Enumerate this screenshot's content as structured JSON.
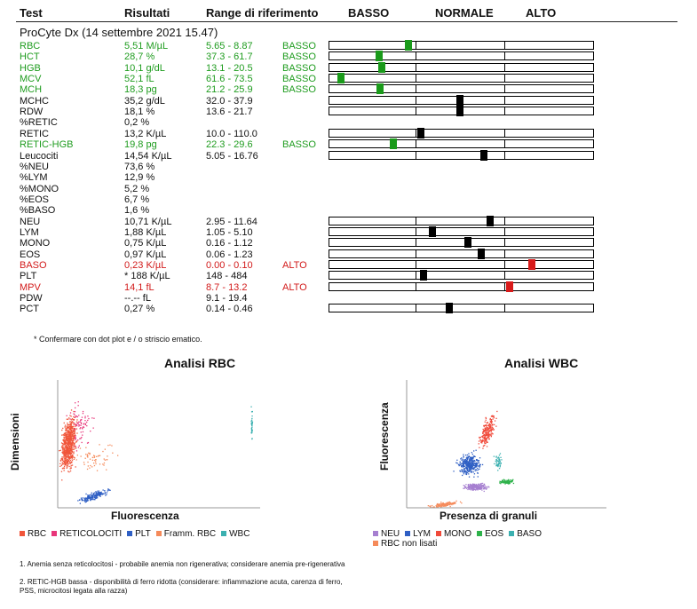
{
  "header": {
    "test": "Test",
    "results": "Risultati",
    "range": "Range di riferimento",
    "low": "BASSO",
    "normal": "NORMALE",
    "high": "ALTO"
  },
  "device": "ProCyte Dx (14 settembre 2021 15.47)",
  "rows": [
    {
      "test": "RBC",
      "result": "5,51 M/µL",
      "range": "5.65 - 8.87",
      "flag": "BASSO",
      "status": "low",
      "level": 0.93,
      "bar": 1
    },
    {
      "test": "HCT",
      "result": "28,7 %",
      "range": "37.3 - 61.7",
      "flag": "BASSO",
      "status": "low",
      "level": 0.57,
      "bar": 1
    },
    {
      "test": "HGB",
      "result": "10,1 g/dL",
      "range": "13.1 - 20.5",
      "flag": "BASSO",
      "status": "low",
      "level": 0.6,
      "bar": 1
    },
    {
      "test": "MCV",
      "result": "52,1 fL",
      "range": "61.6 - 73.5",
      "flag": "BASSO",
      "status": "low",
      "level": 0.1,
      "bar": 1
    },
    {
      "test": "MCH",
      "result": "18,3 pg",
      "range": "21.2 - 25.9",
      "flag": "BASSO",
      "status": "low",
      "level": 0.58,
      "bar": 1
    },
    {
      "test": "MCHC",
      "result": "35,2 g/dL",
      "range": "32.0 - 37.9",
      "flag": "",
      "status": "norm",
      "level": 0.5,
      "bar": 1
    },
    {
      "test": "RDW",
      "result": "18,1 %",
      "range": "13.6 - 21.7",
      "flag": "",
      "status": "norm",
      "level": 0.5,
      "bar": 1
    },
    {
      "test": "%RETIC",
      "result": "0,2 %",
      "range": "",
      "flag": "",
      "status": "norm",
      "level": null,
      "bar": 0
    },
    {
      "test": "RETIC",
      "result": "13,2 K/µL",
      "range": "10.0 - 110.0",
      "flag": "",
      "status": "norm",
      "level": 0.02,
      "bar": 1
    },
    {
      "test": "RETIC-HGB",
      "result": "19,8 pg",
      "range": "22.3 - 29.6",
      "flag": "BASSO",
      "status": "low",
      "level": 0.75,
      "bar": 1
    },
    {
      "test": "Leucociti",
      "result": "14,54 K/µL",
      "range": "5.05 - 16.76",
      "flag": "",
      "status": "norm",
      "level": 0.8,
      "bar": 1
    },
    {
      "test": "%NEU",
      "result": "73,6 %",
      "range": "",
      "flag": "",
      "status": "norm",
      "level": null,
      "bar": 0
    },
    {
      "test": "%LYM",
      "result": "12,9 %",
      "range": "",
      "flag": "",
      "status": "norm",
      "level": null,
      "bar": 0
    },
    {
      "test": "%MONO",
      "result": "5,2 %",
      "range": "",
      "flag": "",
      "status": "norm",
      "level": null,
      "bar": 0
    },
    {
      "test": "%EOS",
      "result": "6,7 %",
      "range": "",
      "flag": "",
      "status": "norm",
      "level": null,
      "bar": 0
    },
    {
      "test": "%BASO",
      "result": "1,6 %",
      "range": "",
      "flag": "",
      "status": "norm",
      "level": null,
      "bar": 0
    },
    {
      "test": "NEU",
      "result": "10,71 K/µL",
      "range": "2.95 - 11.64",
      "flag": "",
      "status": "norm",
      "level": 0.88,
      "bar": 1
    },
    {
      "test": "LYM",
      "result": "1,88 K/µL",
      "range": "1.05 - 5.10",
      "flag": "",
      "status": "norm",
      "level": 0.16,
      "bar": 1
    },
    {
      "test": "MONO",
      "result": "0,75 K/µL",
      "range": "0.16 - 1.12",
      "flag": "",
      "status": "norm",
      "level": 0.6,
      "bar": 1
    },
    {
      "test": "EOS",
      "result": "0,97 K/µL",
      "range": "0.06 - 1.23",
      "flag": "",
      "status": "norm",
      "level": 0.77,
      "bar": 1
    },
    {
      "test": "BASO",
      "result": "0,23 K/µL",
      "range": "0.00 - 0.10",
      "flag": "ALTO",
      "status": "high",
      "level": 0.3,
      "bar": 1
    },
    {
      "test": "PLT",
      "result": "* 188 K/µL",
      "range": "148 - 484",
      "flag": "",
      "status": "norm",
      "level": 0.06,
      "bar": 1
    },
    {
      "test": "MPV",
      "result": "14,1 fL",
      "range": "8.7 - 13.2",
      "flag": "ALTO",
      "status": "high",
      "level": 0.02,
      "bar": 1
    },
    {
      "test": "PDW",
      "result": "--.-- fL",
      "range": "9.1 - 19.4",
      "flag": "",
      "status": "norm",
      "level": null,
      "bar": 0
    },
    {
      "test": "PCT",
      "result": "0,27 %",
      "range": "0.14 - 0.46",
      "flag": "",
      "status": "norm",
      "level": 0.37,
      "bar": 1
    }
  ],
  "note": "* Confermare con dot plot e / o striscio ematico.",
  "rbc_plot": {
    "title": "Analisi RBC",
    "xlabel": "Fluorescenza",
    "ylabel": "Dimensioni",
    "legend": [
      {
        "label": "RBC",
        "color": "#f0553a"
      },
      {
        "label": "RETICOLOCITI",
        "color": "#e8367a"
      },
      {
        "label": "PLT",
        "color": "#2f5fc4"
      },
      {
        "label": "Framm. RBC",
        "color": "#f58a5a"
      },
      {
        "label": "WBC",
        "color": "#3bb0b0"
      }
    ]
  },
  "wbc_plot": {
    "title": "Analisi WBC",
    "xlabel": "Presenza di granuli",
    "ylabel": "Fluorescenza",
    "legend": [
      {
        "label": "NEU",
        "color": "#a67fd0"
      },
      {
        "label": "LYM",
        "color": "#2f5fc4"
      },
      {
        "label": "MONO",
        "color": "#f04a3a"
      },
      {
        "label": "EOS",
        "color": "#2db24a"
      },
      {
        "label": "BASO",
        "color": "#3bb0b0"
      },
      {
        "label": "RBC non lisati",
        "color": "#f58a5a"
      }
    ]
  },
  "footnotes": [
    "1. Anemia senza reticolocitosi - probabile anemia non rigenerativa; considerare anemia pre-rigenerativa",
    "2. RETIC-HGB bassa - disponibilità di ferro ridotta (considerare: infiammazione acuta, carenza di ferro, PSS, microcitosi legata alla razza)"
  ]
}
